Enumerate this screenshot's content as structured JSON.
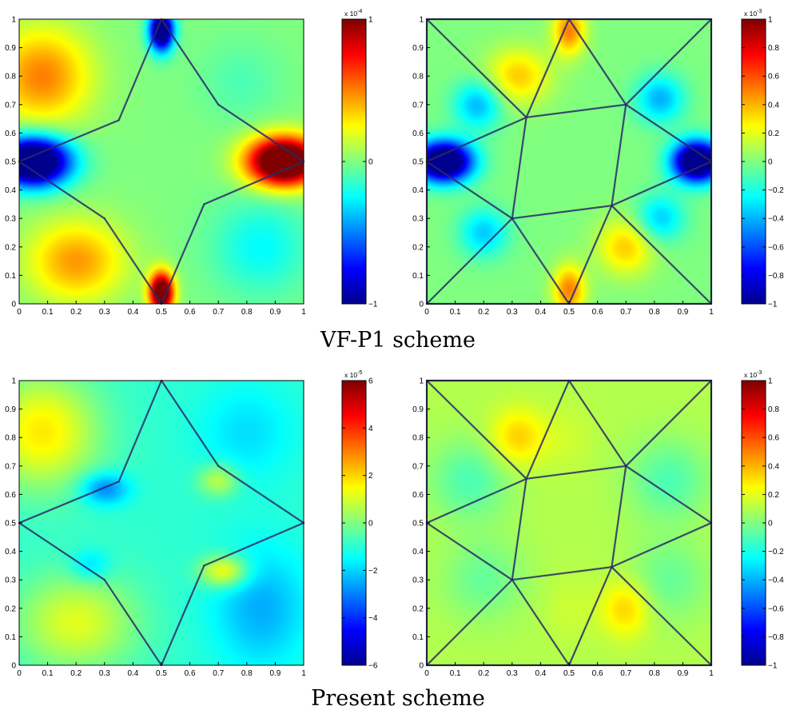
{
  "captions": [
    "VF-P1 scheme",
    "Present scheme"
  ],
  "colors": {
    "jet": [
      "#00008f",
      "#0000ff",
      "#0080ff",
      "#00ffff",
      "#80ff80",
      "#ffff00",
      "#ff8000",
      "#ff0000",
      "#800000"
    ],
    "mesh_edge": "#2a2a6a",
    "frame": "#000000"
  },
  "chart_data": [
    {
      "type": "heatmap",
      "xlim": [
        0,
        1
      ],
      "ylim": [
        0,
        1
      ],
      "xticks": [
        "0",
        "0.1",
        "0.2",
        "0.3",
        "0.4",
        "0.5",
        "0.6",
        "0.7",
        "0.8",
        "0.9",
        "1"
      ],
      "yticks": [
        "0",
        "0.1",
        "0.2",
        "0.3",
        "0.4",
        "0.5",
        "0.6",
        "0.7",
        "0.8",
        "0.9",
        "1"
      ],
      "colorbar": {
        "range": [
          -1,
          1
        ],
        "ticks": [
          {
            "v": 1,
            "l": "1"
          },
          {
            "v": 0,
            "l": "0"
          },
          {
            "v": -1,
            "l": "−1"
          }
        ],
        "exponent_label": "x 10",
        "exponent": "-4"
      },
      "field": {
        "base": 0.5,
        "blobs": [
          {
            "x": 0.05,
            "y": 0.5,
            "sx": 0.09,
            "sy": 0.06,
            "a": -1.5
          },
          {
            "x": 0.93,
            "y": 0.5,
            "sx": 0.09,
            "sy": 0.06,
            "a": 1.5
          },
          {
            "x": 0.5,
            "y": 0.96,
            "sx": 0.03,
            "sy": 0.05,
            "a": -1.3
          },
          {
            "x": 0.5,
            "y": 0.04,
            "sx": 0.03,
            "sy": 0.05,
            "a": 1.3
          },
          {
            "x": 0.08,
            "y": 0.8,
            "sx": 0.12,
            "sy": 0.12,
            "a": 0.5
          },
          {
            "x": 0.2,
            "y": 0.15,
            "sx": 0.12,
            "sy": 0.1,
            "a": 0.45
          },
          {
            "x": 0.85,
            "y": 0.2,
            "sx": 0.12,
            "sy": 0.12,
            "a": -0.25
          },
          {
            "x": 0.78,
            "y": 0.78,
            "sx": 0.1,
            "sy": 0.1,
            "a": -0.1
          }
        ]
      },
      "mesh": [
        [
          [
            0.5,
            1
          ],
          [
            0.35,
            0.645
          ]
        ],
        [
          [
            0.35,
            0.645
          ],
          [
            0,
            0.5
          ]
        ],
        [
          [
            0,
            0.5
          ],
          [
            0.3,
            0.3
          ]
        ],
        [
          [
            0.3,
            0.3
          ],
          [
            0.5,
            0
          ]
        ],
        [
          [
            0.5,
            0
          ],
          [
            0.65,
            0.35
          ]
        ],
        [
          [
            0.65,
            0.35
          ],
          [
            1,
            0.5
          ]
        ],
        [
          [
            1,
            0.5
          ],
          [
            0.7,
            0.7
          ]
        ],
        [
          [
            0.7,
            0.7
          ],
          [
            0.5,
            1
          ]
        ]
      ]
    },
    {
      "type": "heatmap",
      "xlim": [
        0,
        1
      ],
      "ylim": [
        0,
        1
      ],
      "xticks": [
        "0",
        "0.1",
        "0.2",
        "0.3",
        "0.4",
        "0.5",
        "0.6",
        "0.7",
        "0.8",
        "0.9",
        "1"
      ],
      "yticks": [
        "0",
        "0.1",
        "0.2",
        "0.3",
        "0.4",
        "0.5",
        "0.6",
        "0.7",
        "0.8",
        "0.9",
        "1"
      ],
      "colorbar": {
        "range": [
          -1,
          1
        ],
        "ticks": [
          {
            "v": 1,
            "l": "1"
          },
          {
            "v": 0.8,
            "l": "0.8"
          },
          {
            "v": 0.6,
            "l": "0.6"
          },
          {
            "v": 0.4,
            "l": "0.4"
          },
          {
            "v": 0.2,
            "l": "0.2"
          },
          {
            "v": 0,
            "l": "0"
          },
          {
            "v": -0.2,
            "l": "−0.2"
          },
          {
            "v": -0.4,
            "l": "−0.4"
          },
          {
            "v": -0.6,
            "l": "−0.6"
          },
          {
            "v": -0.8,
            "l": "−0.8"
          },
          {
            "v": -1,
            "l": "−1"
          }
        ],
        "exponent_label": "x 10",
        "exponent": "-3"
      },
      "field": {
        "base": 0.5,
        "blobs": [
          {
            "x": 0.5,
            "y": 0.96,
            "sx": 0.04,
            "sy": 0.06,
            "a": 0.5
          },
          {
            "x": 0.5,
            "y": 0.05,
            "sx": 0.04,
            "sy": 0.06,
            "a": 0.5
          },
          {
            "x": 0.06,
            "y": 0.5,
            "sx": 0.07,
            "sy": 0.05,
            "a": -1.4
          },
          {
            "x": 0.95,
            "y": 0.5,
            "sx": 0.06,
            "sy": 0.05,
            "a": -1.4
          },
          {
            "x": 0.32,
            "y": 0.8,
            "sx": 0.08,
            "sy": 0.07,
            "a": 0.35
          },
          {
            "x": 0.18,
            "y": 0.7,
            "sx": 0.06,
            "sy": 0.06,
            "a": -0.4
          },
          {
            "x": 0.82,
            "y": 0.72,
            "sx": 0.06,
            "sy": 0.06,
            "a": -0.4
          },
          {
            "x": 0.7,
            "y": 0.2,
            "sx": 0.07,
            "sy": 0.07,
            "a": 0.35
          },
          {
            "x": 0.2,
            "y": 0.25,
            "sx": 0.06,
            "sy": 0.06,
            "a": -0.35
          },
          {
            "x": 0.82,
            "y": 0.3,
            "sx": 0.06,
            "sy": 0.06,
            "a": -0.35
          }
        ]
      },
      "mesh": [
        [
          [
            0,
            0
          ],
          [
            1,
            0
          ]
        ],
        [
          [
            1,
            0
          ],
          [
            1,
            1
          ]
        ],
        [
          [
            1,
            1
          ],
          [
            0,
            1
          ]
        ],
        [
          [
            0,
            1
          ],
          [
            0,
            0
          ]
        ],
        [
          [
            0.35,
            0.655
          ],
          [
            0.7,
            0.7
          ]
        ],
        [
          [
            0.7,
            0.7
          ],
          [
            0.65,
            0.345
          ]
        ],
        [
          [
            0.65,
            0.345
          ],
          [
            0.3,
            0.3
          ]
        ],
        [
          [
            0.3,
            0.3
          ],
          [
            0.35,
            0.655
          ]
        ],
        [
          [
            0.5,
            1
          ],
          [
            0.35,
            0.655
          ]
        ],
        [
          [
            0.5,
            1
          ],
          [
            0.7,
            0.7
          ]
        ],
        [
          [
            0,
            0.5
          ],
          [
            0.35,
            0.655
          ]
        ],
        [
          [
            0,
            0.5
          ],
          [
            0.3,
            0.3
          ]
        ],
        [
          [
            0.5,
            0
          ],
          [
            0.3,
            0.3
          ]
        ],
        [
          [
            0.5,
            0
          ],
          [
            0.65,
            0.345
          ]
        ],
        [
          [
            1,
            0.5
          ],
          [
            0.7,
            0.7
          ]
        ],
        [
          [
            1,
            0.5
          ],
          [
            0.65,
            0.345
          ]
        ],
        [
          [
            0,
            1
          ],
          [
            0.35,
            0.655
          ]
        ],
        [
          [
            1,
            1
          ],
          [
            0.7,
            0.7
          ]
        ],
        [
          [
            0,
            0
          ],
          [
            0.3,
            0.3
          ]
        ],
        [
          [
            1,
            0
          ],
          [
            0.65,
            0.345
          ]
        ]
      ]
    },
    {
      "type": "heatmap",
      "xlim": [
        0,
        1
      ],
      "ylim": [
        0,
        1
      ],
      "xticks": [
        "0",
        "0.1",
        "0.2",
        "0.3",
        "0.4",
        "0.5",
        "0.6",
        "0.7",
        "0.8",
        "0.9",
        "1"
      ],
      "yticks": [
        "0",
        "0.1",
        "0.2",
        "0.3",
        "0.4",
        "0.5",
        "0.6",
        "0.7",
        "0.8",
        "0.9",
        "1"
      ],
      "colorbar": {
        "range": [
          -6,
          6
        ],
        "ticks": [
          {
            "v": 6,
            "l": "6"
          },
          {
            "v": 4,
            "l": "4"
          },
          {
            "v": 2,
            "l": "2"
          },
          {
            "v": 0,
            "l": "0"
          },
          {
            "v": -2,
            "l": "−2"
          },
          {
            "v": -4,
            "l": "−4"
          },
          {
            "v": -6,
            "l": "−6"
          }
        ],
        "exponent_label": "x 10",
        "exponent": "-5"
      },
      "field": {
        "base": 0.42,
        "blobs": [
          {
            "x": 0.08,
            "y": 0.82,
            "sx": 0.14,
            "sy": 0.14,
            "a": 0.45
          },
          {
            "x": 0.2,
            "y": 0.15,
            "sx": 0.15,
            "sy": 0.12,
            "a": 0.35
          },
          {
            "x": 0.85,
            "y": 0.2,
            "sx": 0.12,
            "sy": 0.15,
            "a": -0.25
          },
          {
            "x": 0.8,
            "y": 0.82,
            "sx": 0.12,
            "sy": 0.12,
            "a": -0.15
          },
          {
            "x": 0.3,
            "y": 0.62,
            "sx": 0.06,
            "sy": 0.04,
            "a": -0.35
          },
          {
            "x": 0.72,
            "y": 0.33,
            "sx": 0.06,
            "sy": 0.04,
            "a": 0.45
          },
          {
            "x": 0.7,
            "y": 0.65,
            "sx": 0.05,
            "sy": 0.04,
            "a": 0.3
          },
          {
            "x": 0.25,
            "y": 0.35,
            "sx": 0.05,
            "sy": 0.04,
            "a": -0.2
          }
        ]
      },
      "mesh": [
        [
          [
            0.5,
            1
          ],
          [
            0.35,
            0.645
          ]
        ],
        [
          [
            0.35,
            0.645
          ],
          [
            0,
            0.5
          ]
        ],
        [
          [
            0,
            0.5
          ],
          [
            0.3,
            0.3
          ]
        ],
        [
          [
            0.3,
            0.3
          ],
          [
            0.5,
            0
          ]
        ],
        [
          [
            0.5,
            0
          ],
          [
            0.65,
            0.35
          ]
        ],
        [
          [
            0.65,
            0.35
          ],
          [
            1,
            0.5
          ]
        ],
        [
          [
            1,
            0.5
          ],
          [
            0.7,
            0.7
          ]
        ],
        [
          [
            0.7,
            0.7
          ],
          [
            0.5,
            1
          ]
        ]
      ]
    },
    {
      "type": "heatmap",
      "xlim": [
        0,
        1
      ],
      "ylim": [
        0,
        1
      ],
      "xticks": [
        "0",
        "0.1",
        "0.2",
        "0.3",
        "0.4",
        "0.5",
        "0.6",
        "0.7",
        "0.8",
        "0.9",
        "1"
      ],
      "yticks": [
        "0",
        "0.1",
        "0.2",
        "0.3",
        "0.4",
        "0.5",
        "0.6",
        "0.7",
        "0.8",
        "0.9",
        "1"
      ],
      "colorbar": {
        "range": [
          -1,
          1
        ],
        "ticks": [
          {
            "v": 1,
            "l": "1"
          },
          {
            "v": 0.8,
            "l": "0.8"
          },
          {
            "v": 0.6,
            "l": "0.6"
          },
          {
            "v": 0.4,
            "l": "0.4"
          },
          {
            "v": 0.2,
            "l": "0.2"
          },
          {
            "v": 0,
            "l": "0"
          },
          {
            "v": -0.2,
            "l": "−0.2"
          },
          {
            "v": -0.4,
            "l": "−0.4"
          },
          {
            "v": -0.6,
            "l": "−0.6"
          },
          {
            "v": -0.8,
            "l": "−0.8"
          },
          {
            "v": -1,
            "l": "−1"
          }
        ],
        "exponent_label": "x 10",
        "exponent": "-3"
      },
      "field": {
        "base": 0.55,
        "blobs": [
          {
            "x": 0.32,
            "y": 0.8,
            "sx": 0.07,
            "sy": 0.07,
            "a": 0.25
          },
          {
            "x": 0.7,
            "y": 0.2,
            "sx": 0.06,
            "sy": 0.07,
            "a": 0.25
          },
          {
            "x": 0.15,
            "y": 0.65,
            "sx": 0.1,
            "sy": 0.1,
            "a": -0.2
          },
          {
            "x": 0.85,
            "y": 0.65,
            "sx": 0.1,
            "sy": 0.1,
            "a": -0.2
          },
          {
            "x": 0.2,
            "y": 0.3,
            "sx": 0.1,
            "sy": 0.1,
            "a": -0.15
          },
          {
            "x": 0.85,
            "y": 0.3,
            "sx": 0.1,
            "sy": 0.1,
            "a": -0.15
          },
          {
            "x": 0.5,
            "y": 0.8,
            "sx": 0.06,
            "sy": 0.08,
            "a": 0.05
          },
          {
            "x": 0.5,
            "y": 0.2,
            "sx": 0.06,
            "sy": 0.08,
            "a": 0.05
          }
        ]
      },
      "mesh": [
        [
          [
            0,
            0
          ],
          [
            1,
            0
          ]
        ],
        [
          [
            1,
            0
          ],
          [
            1,
            1
          ]
        ],
        [
          [
            1,
            1
          ],
          [
            0,
            1
          ]
        ],
        [
          [
            0,
            1
          ],
          [
            0,
            0
          ]
        ],
        [
          [
            0.35,
            0.655
          ],
          [
            0.7,
            0.7
          ]
        ],
        [
          [
            0.7,
            0.7
          ],
          [
            0.65,
            0.345
          ]
        ],
        [
          [
            0.65,
            0.345
          ],
          [
            0.3,
            0.3
          ]
        ],
        [
          [
            0.3,
            0.3
          ],
          [
            0.35,
            0.655
          ]
        ],
        [
          [
            0.5,
            1
          ],
          [
            0.35,
            0.655
          ]
        ],
        [
          [
            0.5,
            1
          ],
          [
            0.7,
            0.7
          ]
        ],
        [
          [
            0,
            0.5
          ],
          [
            0.35,
            0.655
          ]
        ],
        [
          [
            0,
            0.5
          ],
          [
            0.3,
            0.3
          ]
        ],
        [
          [
            0.5,
            0
          ],
          [
            0.3,
            0.3
          ]
        ],
        [
          [
            0.5,
            0
          ],
          [
            0.65,
            0.345
          ]
        ],
        [
          [
            1,
            0.5
          ],
          [
            0.7,
            0.7
          ]
        ],
        [
          [
            1,
            0.5
          ],
          [
            0.65,
            0.345
          ]
        ],
        [
          [
            0,
            1
          ],
          [
            0.35,
            0.655
          ]
        ],
        [
          [
            1,
            1
          ],
          [
            0.7,
            0.7
          ]
        ],
        [
          [
            0,
            0
          ],
          [
            0.3,
            0.3
          ]
        ],
        [
          [
            1,
            0
          ],
          [
            0.65,
            0.345
          ]
        ]
      ]
    }
  ]
}
